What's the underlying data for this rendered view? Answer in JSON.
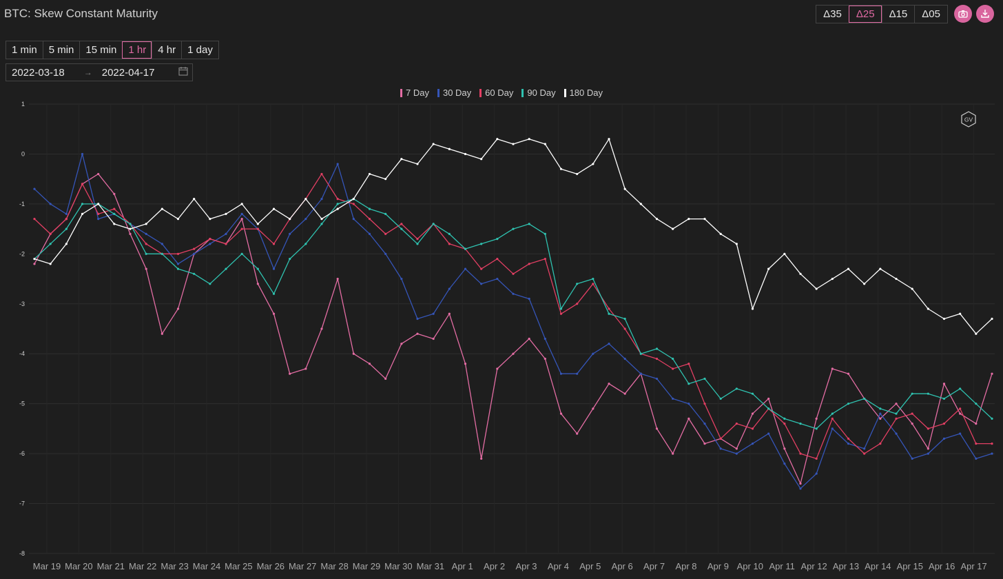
{
  "title": "BTC: Skew Constant Maturity",
  "deltas": [
    "Δ35",
    "Δ25",
    "Δ15",
    "Δ05"
  ],
  "active_delta": "Δ25",
  "intervals": [
    "1 min",
    "5 min",
    "15 min",
    "1 hr",
    "4 hr",
    "1 day"
  ],
  "active_interval": "1 hr",
  "date_range": {
    "start": "2022-03-18",
    "end": "2022-04-17"
  },
  "watermark": "GV",
  "colors": {
    "accent": "#d9659e",
    "background": "#1e1e1e"
  },
  "chart_data": {
    "type": "line",
    "title": "",
    "xlabel": "",
    "ylabel": "",
    "ylim": [
      -8,
      1
    ],
    "yticks": [
      1,
      0,
      -1,
      -2,
      -3,
      -4,
      -5,
      -6,
      -7,
      -8
    ],
    "x_labels": [
      "Mar 19",
      "Mar 20",
      "Mar 21",
      "Mar 22",
      "Mar 23",
      "Mar 24",
      "Mar 25",
      "Mar 26",
      "Mar 27",
      "Mar 28",
      "Mar 29",
      "Mar 30",
      "Mar 31",
      "Apr 1",
      "Apr 2",
      "Apr 3",
      "Apr 4",
      "Apr 5",
      "Apr 6",
      "Apr 7",
      "Apr 8",
      "Apr 9",
      "Apr 10",
      "Apr 11",
      "Apr 12",
      "Apr 13",
      "Apr 14",
      "Apr 15",
      "Apr 16",
      "Apr 17"
    ],
    "x": [
      "Mar 18 12:00",
      "Mar 19",
      "Mar 19 12:00",
      "Mar 20",
      "Mar 20 12:00",
      "Mar 21",
      "Mar 21 12:00",
      "Mar 22",
      "Mar 22 12:00",
      "Mar 23",
      "Mar 23 12:00",
      "Mar 24",
      "Mar 24 12:00",
      "Mar 25",
      "Mar 25 12:00",
      "Mar 26",
      "Mar 26 12:00",
      "Mar 27",
      "Mar 27 12:00",
      "Mar 28",
      "Mar 28 12:00",
      "Mar 29",
      "Mar 29 12:00",
      "Mar 30",
      "Mar 30 12:00",
      "Mar 31",
      "Mar 31 12:00",
      "Apr 1",
      "Apr 1 12:00",
      "Apr 2",
      "Apr 2 12:00",
      "Apr 3",
      "Apr 3 12:00",
      "Apr 4",
      "Apr 4 12:00",
      "Apr 5",
      "Apr 5 12:00",
      "Apr 6",
      "Apr 6 12:00",
      "Apr 7",
      "Apr 7 12:00",
      "Apr 8",
      "Apr 8 12:00",
      "Apr 9",
      "Apr 9 12:00",
      "Apr 10",
      "Apr 10 12:00",
      "Apr 11",
      "Apr 11 12:00",
      "Apr 12",
      "Apr 12 12:00",
      "Apr 13",
      "Apr 13 12:00",
      "Apr 14",
      "Apr 14 12:00",
      "Apr 15",
      "Apr 15 12:00",
      "Apr 16",
      "Apr 16 12:00",
      "Apr 17",
      "Apr 17 12:00"
    ],
    "series": [
      {
        "name": "7 Day",
        "color": "#e46da4",
        "values": [
          -2.2,
          -1.6,
          -1.3,
          -0.6,
          -0.4,
          -0.8,
          -1.6,
          -2.3,
          -3.6,
          -3.1,
          -2.0,
          -1.7,
          -1.8,
          -1.3,
          -2.6,
          -3.2,
          -4.4,
          -4.3,
          -3.5,
          -2.5,
          -4.0,
          -4.2,
          -4.5,
          -3.8,
          -3.6,
          -3.7,
          -3.2,
          -4.2,
          -6.1,
          -4.3,
          -4.0,
          -3.7,
          -4.1,
          -5.2,
          -5.6,
          -5.1,
          -4.6,
          -4.8,
          -4.4,
          -5.5,
          -6.0,
          -5.3,
          -5.8,
          -5.7,
          -5.9,
          -5.2,
          -4.9,
          -5.9,
          -6.6,
          -5.3,
          -4.3,
          -4.4,
          -4.9,
          -5.3,
          -5.0,
          -5.4,
          -5.9,
          -4.6,
          -5.2,
          -5.4,
          -4.4
        ]
      },
      {
        "name": "30 Day",
        "color": "#3555b8",
        "values": [
          -0.7,
          -1.0,
          -1.2,
          0.0,
          -1.3,
          -1.2,
          -1.4,
          -1.6,
          -1.8,
          -2.2,
          -2.0,
          -1.8,
          -1.6,
          -1.2,
          -1.5,
          -2.3,
          -1.6,
          -1.3,
          -0.9,
          -0.2,
          -1.3,
          -1.6,
          -2.0,
          -2.5,
          -3.3,
          -3.2,
          -2.7,
          -2.3,
          -2.6,
          -2.5,
          -2.8,
          -2.9,
          -3.7,
          -4.4,
          -4.4,
          -4.0,
          -3.8,
          -4.1,
          -4.4,
          -4.5,
          -4.9,
          -5.0,
          -5.4,
          -5.9,
          -6.0,
          -5.8,
          -5.6,
          -6.2,
          -6.7,
          -6.4,
          -5.5,
          -5.8,
          -5.9,
          -5.2,
          -5.6,
          -6.1,
          -6.0,
          -5.7,
          -5.6,
          -6.1,
          -6.0
        ]
      },
      {
        "name": "60 Day",
        "color": "#e23f63",
        "values": [
          -1.3,
          -1.6,
          -1.3,
          -0.6,
          -1.2,
          -1.1,
          -1.4,
          -1.8,
          -2.0,
          -2.0,
          -1.9,
          -1.7,
          -1.8,
          -1.5,
          -1.5,
          -1.8,
          -1.3,
          -0.9,
          -0.4,
          -0.9,
          -1.0,
          -1.3,
          -1.6,
          -1.4,
          -1.7,
          -1.4,
          -1.8,
          -1.9,
          -2.3,
          -2.1,
          -2.4,
          -2.2,
          -2.1,
          -3.2,
          -3.0,
          -2.6,
          -3.1,
          -3.5,
          -4.0,
          -4.1,
          -4.3,
          -4.2,
          -5.0,
          -5.7,
          -5.4,
          -5.5,
          -5.1,
          -5.4,
          -6.0,
          -6.1,
          -5.3,
          -5.7,
          -6.0,
          -5.8,
          -5.3,
          -5.2,
          -5.5,
          -5.4,
          -5.1,
          -5.8,
          -5.8
        ]
      },
      {
        "name": "90 Day",
        "color": "#2fc2b0",
        "values": [
          -2.1,
          -1.8,
          -1.5,
          -1.0,
          -1.0,
          -1.2,
          -1.4,
          -2.0,
          -2.0,
          -2.3,
          -2.4,
          -2.6,
          -2.3,
          -2.0,
          -2.3,
          -2.8,
          -2.1,
          -1.8,
          -1.4,
          -1.0,
          -0.9,
          -1.1,
          -1.2,
          -1.5,
          -1.8,
          -1.4,
          -1.6,
          -1.9,
          -1.8,
          -1.7,
          -1.5,
          -1.4,
          -1.6,
          -3.1,
          -2.6,
          -2.5,
          -3.2,
          -3.3,
          -4.0,
          -3.9,
          -4.1,
          -4.6,
          -4.5,
          -4.9,
          -4.7,
          -4.8,
          -5.1,
          -5.3,
          -5.4,
          -5.5,
          -5.2,
          -5.0,
          -4.9,
          -5.1,
          -5.2,
          -4.8,
          -4.8,
          -4.9,
          -4.7,
          -5.0,
          -5.3
        ]
      },
      {
        "name": "180 Day",
        "color": "#ffffff",
        "values": [
          -2.1,
          -2.2,
          -1.8,
          -1.2,
          -1.0,
          -1.4,
          -1.5,
          -1.4,
          -1.1,
          -1.3,
          -0.9,
          -1.3,
          -1.2,
          -1.0,
          -1.4,
          -1.1,
          -1.3,
          -0.9,
          -1.3,
          -1.1,
          -0.9,
          -0.4,
          -0.5,
          -0.1,
          -0.2,
          0.2,
          0.1,
          0.0,
          -0.1,
          0.3,
          0.2,
          0.3,
          0.2,
          -0.3,
          -0.4,
          -0.2,
          0.3,
          -0.7,
          -1.0,
          -1.3,
          -1.5,
          -1.3,
          -1.3,
          -1.6,
          -1.8,
          -3.1,
          -2.3,
          -2.0,
          -2.4,
          -2.7,
          -2.5,
          -2.3,
          -2.6,
          -2.3,
          -2.5,
          -2.7,
          -3.1,
          -3.3,
          -3.2,
          -3.6,
          -3.3
        ]
      }
    ],
    "legend": "top-center",
    "grid": true
  }
}
